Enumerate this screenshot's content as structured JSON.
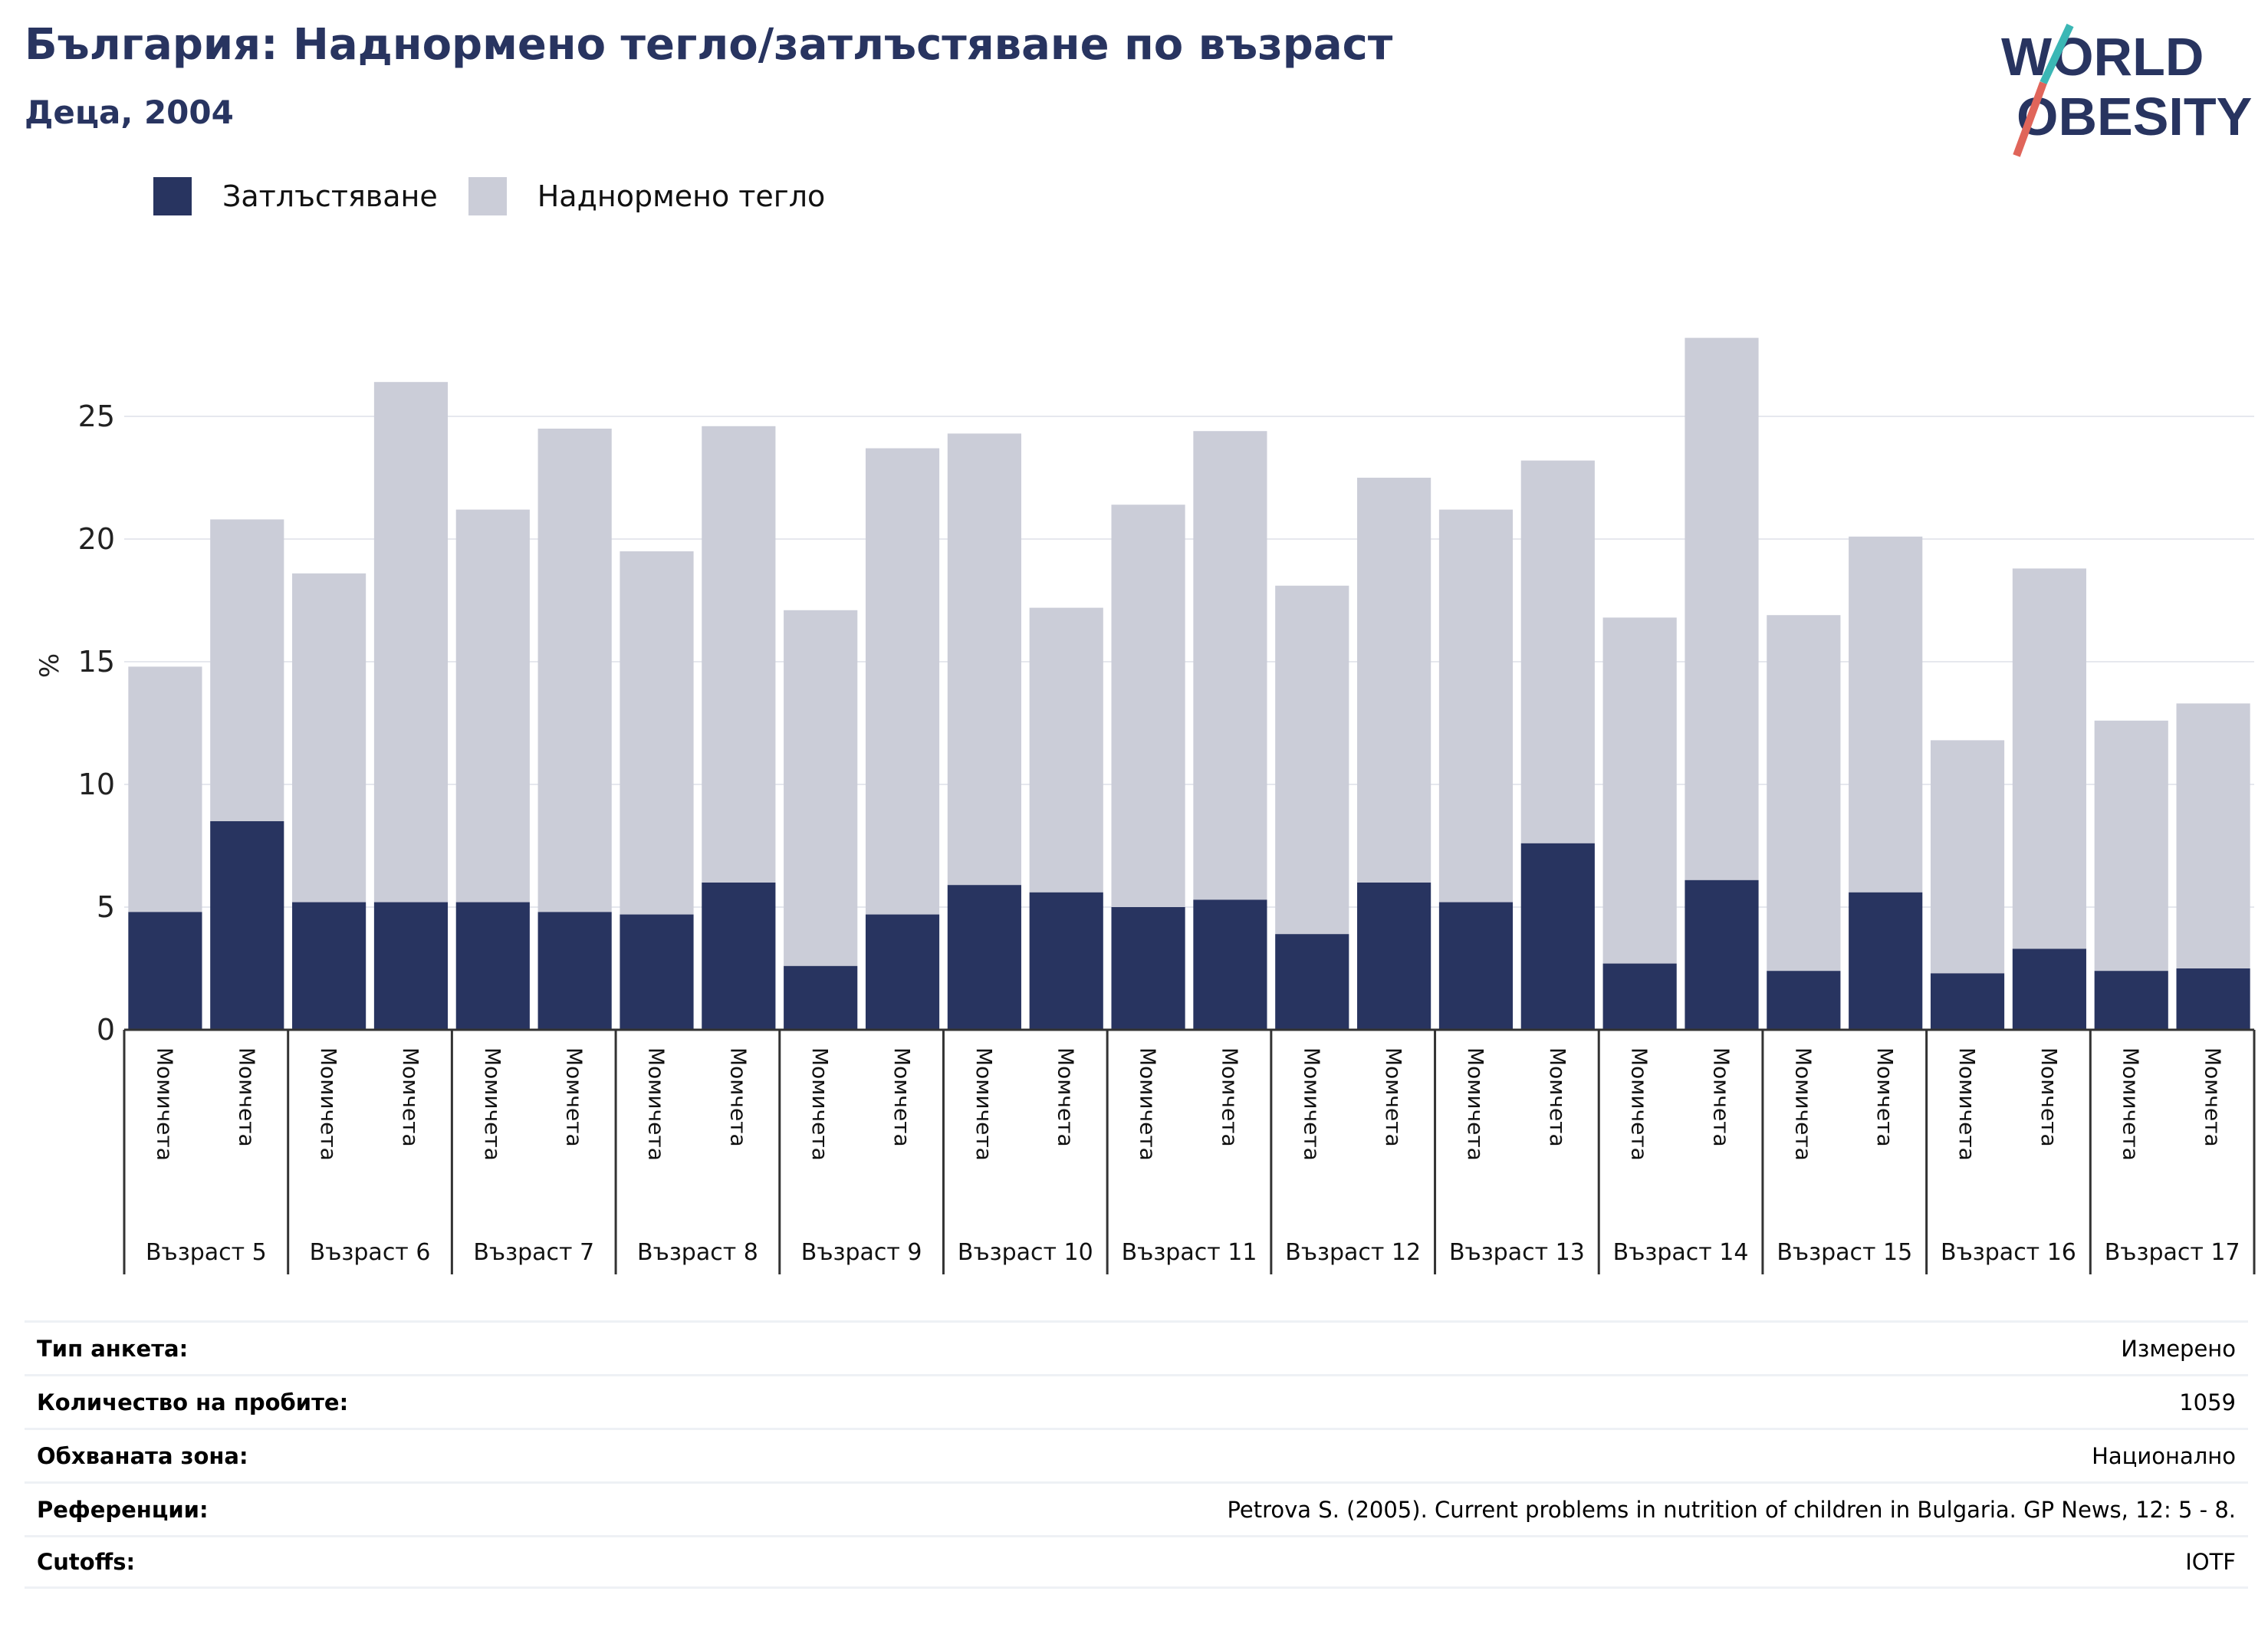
{
  "header": {
    "title": "България: Наднормено тегло/затлъстяване по възраст",
    "subtitle": "Деца, 2004"
  },
  "logo": {
    "line1": "WORLD",
    "line2": "OBESITY"
  },
  "colors": {
    "obesity": "#283460",
    "overweight": "#cbcdd8",
    "accent_teal": "#3bb7b5",
    "accent_red": "#e0655a"
  },
  "legend": [
    {
      "label": "Затлъстяване",
      "color": "#283460"
    },
    {
      "label": "Наднормено тегло",
      "color": "#cbcdd8"
    }
  ],
  "chart_data": {
    "type": "bar",
    "stacked": true,
    "ylabel": "%",
    "ylim": [
      0,
      30
    ],
    "yticks": [
      0,
      5,
      10,
      15,
      20,
      25
    ],
    "grid": true,
    "legend_position": "top-left",
    "groups": [
      "Възраст 5",
      "Възраст 6",
      "Възраст 7",
      "Възраст 8",
      "Възраст 9",
      "Възраст 10",
      "Възраст 11",
      "Възраст 12",
      "Възраст 13",
      "Възраст 14",
      "Възраст 15",
      "Възраст 16",
      "Възраст 17"
    ],
    "subcategories": [
      "Момичета",
      "Момчета"
    ],
    "series": [
      {
        "name": "Затлъстяване",
        "values": [
          4.8,
          8.5,
          5.2,
          5.2,
          5.2,
          4.8,
          4.7,
          6.0,
          2.6,
          4.7,
          5.9,
          5.6,
          5.0,
          5.3,
          3.9,
          6.0,
          5.2,
          7.6,
          2.7,
          6.1,
          2.4,
          5.6,
          2.3,
          3.3,
          2.4,
          2.5
        ]
      },
      {
        "name": "Наднормено тегло",
        "values": [
          10.0,
          12.3,
          13.4,
          21.2,
          16.0,
          19.7,
          14.8,
          18.6,
          14.5,
          19.0,
          18.4,
          11.6,
          16.4,
          19.1,
          14.2,
          16.5,
          16.0,
          15.6,
          14.1,
          22.1,
          14.5,
          14.5,
          9.5,
          15.5,
          10.2,
          10.8
        ]
      }
    ]
  },
  "info_table": [
    {
      "key": "Тип анкета:",
      "value": "Измерено"
    },
    {
      "key": "Количество на пробите:",
      "value": "1059"
    },
    {
      "key": "Обхваната зона:",
      "value": "Национално"
    },
    {
      "key": "Референции:",
      "value": "Petrova S. (2005). Current problems in nutrition of children in Bulgaria. GP News, 12: 5 - 8."
    },
    {
      "key": "Cutoffs:",
      "value": "IOTF"
    }
  ]
}
